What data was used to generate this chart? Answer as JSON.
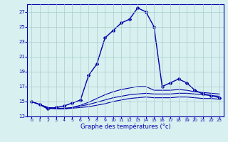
{
  "title": "",
  "xlabel": "Graphe des températures (°c)",
  "ylabel": "",
  "bg_color": "#d8f0f0",
  "line_color": "#0000aa",
  "grid_color": "#aacccc",
  "xlim": [
    -0.5,
    23.5
  ],
  "ylim": [
    13,
    28
  ],
  "xticks": [
    0,
    1,
    2,
    3,
    4,
    5,
    6,
    7,
    8,
    9,
    10,
    11,
    12,
    13,
    14,
    15,
    16,
    17,
    18,
    19,
    20,
    21,
    22,
    23
  ],
  "yticks": [
    13,
    15,
    17,
    19,
    21,
    23,
    25,
    27
  ],
  "lines": [
    {
      "x": [
        0,
        1,
        2,
        3,
        4,
        5,
        6,
        7,
        8,
        9,
        10,
        11,
        12,
        13,
        14,
        15,
        16,
        17,
        18,
        19,
        20,
        21,
        22,
        23
      ],
      "y": [
        15.0,
        14.6,
        14.2,
        14.1,
        14.0,
        14.1,
        14.2,
        14.3,
        14.5,
        14.7,
        15.0,
        15.2,
        15.4,
        15.5,
        15.6,
        15.5,
        15.5,
        15.5,
        15.6,
        15.6,
        15.5,
        15.4,
        15.4,
        15.3
      ],
      "marker": false,
      "lw": 0.8
    },
    {
      "x": [
        0,
        1,
        2,
        3,
        4,
        5,
        6,
        7,
        8,
        9,
        10,
        11,
        12,
        13,
        14,
        15,
        16,
        17,
        18,
        19,
        20,
        21,
        22,
        23
      ],
      "y": [
        15.0,
        14.6,
        14.2,
        14.1,
        14.1,
        14.2,
        14.4,
        14.6,
        14.9,
        15.2,
        15.5,
        15.7,
        15.9,
        16.0,
        16.1,
        16.0,
        16.0,
        16.0,
        16.1,
        16.1,
        16.0,
        15.9,
        15.8,
        15.7
      ],
      "marker": false,
      "lw": 0.8
    },
    {
      "x": [
        0,
        1,
        2,
        3,
        4,
        5,
        6,
        7,
        8,
        9,
        10,
        11,
        12,
        13,
        14,
        15,
        16,
        17,
        18,
        19,
        20,
        21,
        22,
        23
      ],
      "y": [
        15.0,
        14.6,
        14.1,
        14.0,
        14.0,
        14.2,
        14.5,
        14.9,
        15.4,
        15.9,
        16.3,
        16.6,
        16.8,
        17.0,
        17.0,
        16.5,
        16.5,
        16.5,
        16.6,
        16.5,
        16.3,
        16.2,
        16.1,
        16.0
      ],
      "marker": false,
      "lw": 0.8
    },
    {
      "x": [
        0,
        1,
        2,
        3,
        4,
        5,
        6,
        7,
        8,
        9,
        10,
        11,
        12,
        13,
        14,
        15,
        16,
        17,
        18,
        19,
        20,
        21,
        22,
        23
      ],
      "y": [
        15.0,
        14.6,
        14.0,
        14.2,
        14.4,
        14.8,
        15.2,
        18.5,
        20.0,
        23.5,
        24.5,
        25.5,
        26.0,
        27.5,
        27.0,
        25.0,
        17.0,
        17.5,
        18.0,
        17.5,
        16.5,
        16.0,
        15.8,
        15.5
      ],
      "marker": true,
      "lw": 1.0
    }
  ]
}
